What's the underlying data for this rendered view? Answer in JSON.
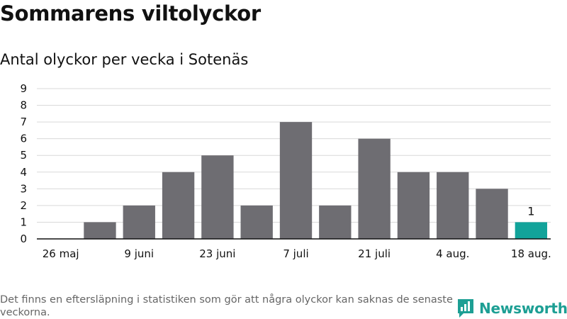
{
  "header": {
    "title": "Sommarens viltolyckor",
    "subtitle": "Antal olyckor per vecka i Sotenäs"
  },
  "footer": {
    "note": "Det finns en eftersläpning i statistiken som gör att några olyckor kan saknas de senaste veckorna.",
    "brand": "Newsworthy"
  },
  "colors": {
    "bar": "#6e6d72",
    "highlight": "#12a39a",
    "grid": "#d9d9d9",
    "brand": "#1d9f94"
  },
  "chart_data": {
    "type": "bar",
    "title": "Sommarens viltolyckor",
    "subtitle": "Antal olyckor per vecka i Sotenäs",
    "xlabel": "",
    "ylabel": "",
    "ylim": [
      0,
      9
    ],
    "yticks": [
      0,
      1,
      2,
      3,
      4,
      5,
      6,
      7,
      8,
      9
    ],
    "grid": true,
    "x_tick_labels": [
      "26 maj",
      "9 juni",
      "23 juni",
      "7 juli",
      "21 juli",
      "4 aug.",
      "18 aug."
    ],
    "values": [
      0,
      1,
      2,
      4,
      5,
      2,
      7,
      2,
      6,
      4,
      4,
      3,
      1
    ],
    "highlight_index": 12,
    "data_labels": [
      {
        "index": 12,
        "text": "1"
      }
    ]
  }
}
